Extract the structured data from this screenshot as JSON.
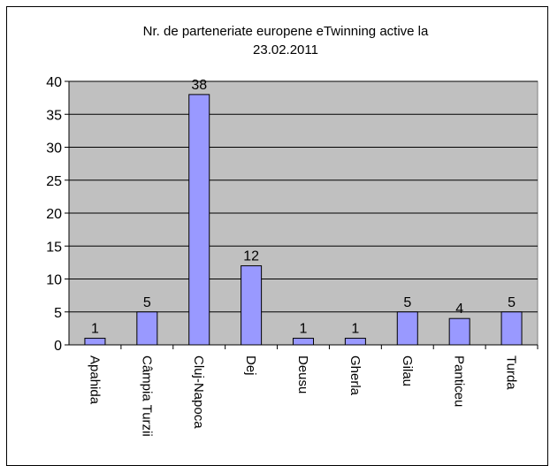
{
  "chart_data": {
    "type": "bar",
    "title_lines": [
      "Nr. de parteneriate europene eTwinning active la",
      "23.02.2011"
    ],
    "xlabel": "",
    "ylabel": "",
    "categories": [
      "Apahida",
      "Câmpia Turzii",
      "Cluj-Napoca",
      "Dej",
      "Deusu",
      "Gherla",
      "Gilau",
      "Panticeu",
      "Turda"
    ],
    "values": [
      1,
      5,
      38,
      12,
      1,
      1,
      5,
      4,
      5
    ],
    "ylim": [
      0,
      40
    ],
    "yticks": [
      0,
      5,
      10,
      15,
      20,
      25,
      30,
      35,
      40
    ],
    "grid": true,
    "legend": "none",
    "colors": {
      "plot_bg": "#c0c0c0",
      "bar_fill": "#9999ff",
      "bar_stroke": "#000000",
      "grid": "#000000"
    }
  }
}
